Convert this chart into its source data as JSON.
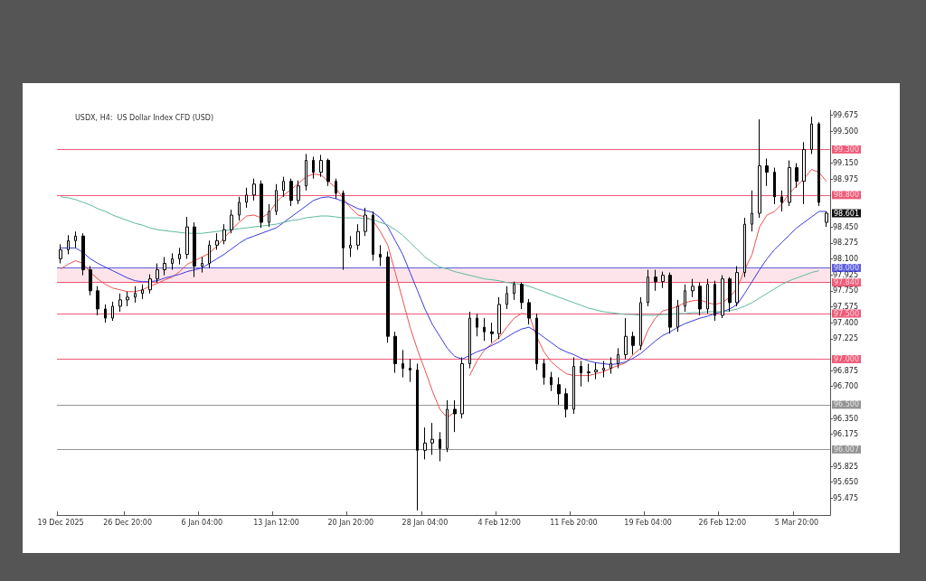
{
  "chart_data": {
    "type": "candlestick",
    "title": "USDX, H4:  US Dollar Index CFD (USD)",
    "color": "#000000",
    "grid": false,
    "categories": [
      "19 Dec 2025",
      null,
      null,
      null,
      null,
      null,
      null,
      null,
      null,
      "26 Dec 20:00",
      null,
      null,
      null,
      null,
      null,
      null,
      null,
      null,
      null,
      "6 Jan 04:00",
      null,
      null,
      null,
      null,
      null,
      null,
      null,
      null,
      null,
      "13 Jan 12:00",
      null,
      null,
      null,
      null,
      null,
      null,
      null,
      null,
      null,
      "20 Jan 20:00",
      null,
      null,
      null,
      null,
      null,
      null,
      null,
      null,
      null,
      "28 Jan 04:00",
      null,
      null,
      null,
      null,
      null,
      null,
      null,
      null,
      null,
      "4 Feb 12:00",
      null,
      null,
      null,
      null,
      null,
      null,
      null,
      null,
      null,
      "11 Feb 20:00",
      null,
      null,
      null,
      null,
      null,
      null,
      null,
      null,
      null,
      "19 Feb 04:00",
      null,
      null,
      null,
      null,
      null,
      null,
      null,
      null,
      null,
      "26 Feb 12:00",
      null,
      null,
      null,
      null,
      null,
      null,
      null,
      null,
      null,
      "5 Mar 20:00",
      null,
      null,
      null,
      null
    ],
    "ohlc": [
      [
        98.1,
        98.26,
        98.05,
        98.2
      ],
      [
        98.2,
        98.36,
        98.15,
        98.3
      ],
      [
        98.3,
        98.4,
        98.22,
        98.35
      ],
      [
        98.35,
        98.38,
        97.92,
        97.98
      ],
      [
        97.98,
        98.02,
        97.7,
        97.75
      ],
      [
        97.75,
        97.8,
        97.48,
        97.55
      ],
      [
        97.55,
        97.6,
        97.4,
        97.45
      ],
      [
        97.45,
        97.63,
        97.42,
        97.58
      ],
      [
        97.58,
        97.72,
        97.52,
        97.65
      ],
      [
        97.65,
        97.74,
        97.58,
        97.68
      ],
      [
        97.68,
        97.8,
        97.62,
        97.72
      ],
      [
        97.72,
        97.82,
        97.66,
        97.76
      ],
      [
        97.76,
        97.93,
        97.72,
        97.88
      ],
      [
        97.88,
        98.05,
        97.84,
        97.98
      ],
      [
        97.98,
        98.12,
        97.92,
        98.05
      ],
      [
        98.05,
        98.16,
        97.98,
        98.1
      ],
      [
        98.1,
        98.22,
        98.04,
        98.15
      ],
      [
        98.15,
        98.56,
        98.1,
        98.45
      ],
      [
        98.45,
        98.5,
        97.9,
        98.02
      ],
      [
        98.02,
        98.12,
        97.95,
        98.05
      ],
      [
        98.05,
        98.3,
        98.0,
        98.25
      ],
      [
        98.25,
        98.38,
        98.2,
        98.3
      ],
      [
        98.3,
        98.48,
        98.26,
        98.42
      ],
      [
        98.42,
        98.64,
        98.38,
        98.58
      ],
      [
        98.58,
        98.78,
        98.52,
        98.72
      ],
      [
        98.72,
        98.88,
        98.66,
        98.8
      ],
      [
        98.8,
        98.98,
        98.74,
        98.92
      ],
      [
        98.92,
        98.96,
        98.44,
        98.5
      ],
      [
        98.5,
        98.7,
        98.45,
        98.62
      ],
      [
        98.62,
        98.92,
        98.58,
        98.85
      ],
      [
        98.85,
        99.0,
        98.78,
        98.95
      ],
      [
        98.95,
        98.98,
        98.68,
        98.74
      ],
      [
        98.74,
        98.96,
        98.7,
        98.9
      ],
      [
        98.9,
        99.25,
        98.85,
        99.18
      ],
      [
        99.18,
        99.22,
        98.98,
        99.05
      ],
      [
        99.05,
        99.24,
        99.0,
        99.18
      ],
      [
        99.18,
        99.2,
        98.9,
        98.95
      ],
      [
        98.95,
        98.98,
        98.76,
        98.82
      ],
      [
        98.82,
        98.85,
        97.98,
        98.22
      ],
      [
        98.22,
        98.35,
        98.12,
        98.25
      ],
      [
        98.25,
        98.48,
        98.2,
        98.4
      ],
      [
        98.4,
        98.66,
        98.35,
        98.58
      ],
      [
        98.58,
        98.62,
        98.08,
        98.15
      ],
      [
        98.15,
        98.25,
        98.02,
        98.12
      ],
      [
        98.12,
        98.18,
        97.18,
        97.25
      ],
      [
        97.25,
        97.3,
        96.85,
        96.95
      ],
      [
        96.95,
        97.1,
        96.8,
        96.9
      ],
      [
        96.9,
        97.0,
        96.75,
        96.88
      ],
      [
        96.88,
        96.95,
        95.34,
        96.0
      ],
      [
        96.0,
        96.25,
        95.9,
        96.08
      ],
      [
        96.08,
        96.3,
        95.95,
        96.12
      ],
      [
        96.12,
        96.2,
        95.88,
        96.02
      ],
      [
        96.02,
        96.55,
        95.98,
        96.45
      ],
      [
        96.45,
        96.55,
        96.2,
        96.4
      ],
      [
        96.4,
        97.02,
        96.35,
        96.95
      ],
      [
        96.95,
        97.52,
        96.9,
        97.45
      ],
      [
        97.45,
        97.5,
        97.25,
        97.35
      ],
      [
        97.35,
        97.45,
        97.2,
        97.3
      ],
      [
        97.3,
        97.4,
        97.18,
        97.28
      ],
      [
        97.28,
        97.68,
        97.22,
        97.6
      ],
      [
        97.6,
        97.8,
        97.55,
        97.72
      ],
      [
        97.72,
        97.85,
        97.65,
        97.82
      ],
      [
        97.82,
        97.84,
        97.55,
        97.62
      ],
      [
        97.62,
        97.66,
        97.38,
        97.45
      ],
      [
        97.45,
        97.5,
        96.88,
        96.95
      ],
      [
        96.95,
        97.0,
        96.72,
        96.8
      ],
      [
        96.8,
        96.86,
        96.65,
        96.72
      ],
      [
        96.72,
        96.8,
        96.5,
        96.62
      ],
      [
        96.62,
        96.68,
        96.36,
        96.45
      ],
      [
        96.45,
        97.02,
        96.4,
        96.92
      ],
      [
        96.92,
        96.98,
        96.7,
        96.85
      ],
      [
        96.85,
        96.95,
        96.75,
        96.86
      ],
      [
        96.86,
        96.96,
        96.78,
        96.88
      ],
      [
        96.88,
        96.98,
        96.8,
        96.9
      ],
      [
        96.9,
        97.02,
        96.84,
        96.95
      ],
      [
        96.95,
        97.12,
        96.9,
        97.05
      ],
      [
        97.05,
        97.45,
        97.0,
        97.25
      ],
      [
        97.25,
        97.3,
        97.05,
        97.15
      ],
      [
        97.15,
        97.68,
        97.1,
        97.62
      ],
      [
        97.62,
        97.98,
        97.58,
        97.9
      ],
      [
        97.9,
        97.98,
        97.75,
        97.85
      ],
      [
        97.85,
        97.96,
        97.78,
        97.92
      ],
      [
        97.92,
        97.95,
        97.28,
        97.35
      ],
      [
        97.35,
        97.65,
        97.3,
        97.58
      ],
      [
        97.58,
        97.82,
        97.52,
        97.75
      ],
      [
        97.75,
        97.88,
        97.68,
        97.8
      ],
      [
        97.8,
        97.84,
        97.48,
        97.55
      ],
      [
        97.55,
        97.88,
        97.5,
        97.82
      ],
      [
        97.82,
        97.86,
        97.42,
        97.48
      ],
      [
        97.48,
        97.92,
        97.45,
        97.88
      ],
      [
        97.88,
        97.9,
        97.52,
        97.62
      ],
      [
        97.62,
        98.02,
        97.58,
        97.95
      ],
      [
        97.95,
        98.55,
        97.9,
        98.48
      ],
      [
        98.48,
        98.85,
        98.4,
        98.6
      ],
      [
        98.6,
        99.63,
        98.55,
        99.12
      ],
      [
        99.12,
        99.2,
        98.9,
        99.05
      ],
      [
        99.05,
        99.1,
        98.7,
        98.78
      ],
      [
        98.78,
        98.85,
        98.62,
        98.72
      ],
      [
        98.72,
        99.18,
        98.68,
        99.1
      ],
      [
        99.1,
        99.15,
        98.88,
        98.95
      ],
      [
        98.95,
        99.38,
        98.7,
        99.3
      ],
      [
        99.3,
        99.66,
        99.25,
        99.58
      ],
      [
        99.58,
        99.6,
        98.68,
        98.72
      ],
      [
        98.5,
        98.62,
        98.45,
        98.601
      ]
    ],
    "series": [
      {
        "type": "line",
        "color": "#f05050",
        "values": [
          97.99,
          98.04,
          98.08,
          98.05,
          97.95,
          97.88,
          97.82,
          97.78,
          97.76,
          97.74,
          97.74,
          97.76,
          97.8,
          97.83,
          97.87,
          97.9,
          97.96,
          98.04,
          98.08,
          98.12,
          98.16,
          98.24,
          98.33,
          98.42,
          98.5,
          98.57,
          98.58,
          98.55,
          98.6,
          98.72,
          98.8,
          98.86,
          98.93,
          99.0,
          99.03,
          99.02,
          98.95,
          98.88,
          98.76,
          98.66,
          98.58,
          98.56,
          98.52,
          98.4,
          98.25,
          97.95,
          97.65,
          97.35,
          97.1,
          96.88,
          96.65,
          96.45,
          96.36,
          96.42,
          null,
          96.82,
          96.98,
          97.1,
          97.17,
          97.24,
          97.35,
          97.45,
          97.5,
          97.49,
          97.25,
          97.08,
          96.97,
          96.9,
          96.84,
          96.82,
          96.82,
          96.82,
          96.84,
          96.86,
          96.9,
          96.93,
          96.96,
          97.05,
          97.12,
          97.32,
          97.45,
          97.53,
          97.55,
          97.58,
          97.62,
          97.64,
          97.65,
          97.62,
          97.6,
          97.62,
          97.68,
          97.78,
          97.98,
          98.15,
          98.45,
          98.58,
          98.62,
          98.7,
          98.82,
          98.9,
          98.98,
          99.08,
          99.05,
          98.95
        ]
      },
      {
        "type": "line",
        "color": "#3a3adf",
        "values": [
          98.22,
          98.22,
          98.22,
          98.17,
          98.1,
          98.05,
          98.01,
          97.97,
          97.93,
          97.89,
          97.86,
          97.85,
          97.85,
          97.86,
          97.89,
          97.91,
          97.93,
          97.96,
          97.98,
          98.0,
          98.05,
          98.1,
          98.15,
          98.21,
          98.27,
          98.32,
          98.35,
          98.38,
          98.41,
          98.44,
          98.5,
          98.56,
          98.62,
          98.68,
          98.74,
          98.77,
          98.78,
          98.76,
          98.73,
          98.69,
          98.65,
          98.63,
          98.61,
          98.55,
          98.45,
          98.3,
          98.15,
          97.95,
          97.75,
          97.55,
          97.38,
          97.25,
          97.12,
          97.03,
          97.0,
          97.04,
          97.08,
          97.11,
          97.15,
          97.19,
          97.24,
          97.29,
          97.33,
          97.35,
          97.3,
          97.24,
          97.18,
          97.12,
          97.08,
          97.05,
          97.01,
          96.98,
          96.96,
          96.95,
          96.94,
          96.95,
          96.97,
          97.01,
          97.06,
          97.13,
          97.2,
          97.26,
          97.3,
          97.35,
          97.39,
          97.42,
          97.45,
          97.47,
          97.5,
          97.52,
          97.55,
          97.6,
          97.72,
          97.85,
          97.98,
          98.1,
          98.2,
          98.28,
          98.36,
          98.44,
          98.5,
          98.56,
          98.62,
          98.62
        ]
      },
      {
        "type": "line",
        "color": "#5fb8a0",
        "values": [
          98.78,
          98.77,
          98.75,
          98.72,
          98.69,
          98.65,
          98.62,
          98.58,
          98.55,
          98.52,
          98.49,
          98.47,
          98.44,
          98.42,
          98.41,
          98.4,
          98.39,
          98.38,
          98.38,
          98.38,
          98.39,
          98.4,
          98.41,
          98.42,
          98.43,
          98.44,
          98.45,
          98.46,
          98.47,
          98.48,
          98.5,
          98.52,
          98.53,
          98.55,
          98.56,
          98.57,
          98.57,
          98.56,
          98.55,
          98.55,
          98.55,
          98.54,
          98.53,
          98.5,
          98.47,
          98.42,
          98.36,
          98.28,
          98.2,
          98.12,
          98.06,
          98.01,
          97.99,
          97.96,
          97.94,
          97.92,
          97.9,
          97.88,
          97.87,
          97.86,
          97.84,
          97.83,
          97.82,
          97.8,
          97.77,
          97.74,
          97.71,
          97.68,
          97.65,
          97.62,
          97.59,
          97.56,
          97.54,
          97.52,
          97.51,
          97.5,
          97.49,
          97.49,
          97.48,
          97.48,
          97.48,
          97.49,
          97.49,
          97.5,
          97.5,
          97.51,
          97.51,
          97.52,
          97.52,
          97.52,
          97.53,
          97.55,
          97.58,
          97.62,
          97.67,
          97.72,
          97.77,
          97.82,
          97.86,
          97.89,
          97.92,
          97.95,
          97.97,
          null
        ]
      }
    ],
    "ylim": [
      95.29,
      99.73
    ],
    "yticks": [
      {
        "value": 99.675,
        "label": "99.675"
      },
      {
        "value": 99.5,
        "label": "99.500"
      },
      {
        "value": 99.15,
        "label": "99.150"
      },
      {
        "value": 98.975,
        "label": "98.975"
      },
      {
        "value": 98.45,
        "label": "98.450"
      },
      {
        "value": 98.275,
        "label": "98.275"
      },
      {
        "value": 98.1,
        "label": "98.100"
      },
      {
        "value": 97.925,
        "label": "97.925"
      },
      {
        "value": 97.75,
        "label": "97.750"
      },
      {
        "value": 97.575,
        "label": "97.575"
      },
      {
        "value": 97.4,
        "label": "97.400"
      },
      {
        "value": 97.225,
        "label": "97.225"
      },
      {
        "value": 96.875,
        "label": "96.875"
      },
      {
        "value": 96.7,
        "label": "96.700"
      },
      {
        "value": 96.35,
        "label": "96.350"
      },
      {
        "value": 96.175,
        "label": "96.175"
      },
      {
        "value": 95.825,
        "label": "95.825"
      },
      {
        "value": 95.65,
        "label": "95.650"
      },
      {
        "value": 95.475,
        "label": "95.475"
      }
    ],
    "ref_lines": [
      {
        "axis": "y",
        "value": 99.3,
        "label": "99.300",
        "color": "#e8244c"
      },
      {
        "axis": "y",
        "value": 98.8,
        "label": "98.800",
        "color": "#e8244c"
      },
      {
        "axis": "y",
        "value": 98.0,
        "label": "98.000",
        "color": "#2a2ad0"
      },
      {
        "axis": "y",
        "value": 97.84,
        "label": "97.840",
        "color": "#e8244c"
      },
      {
        "axis": "y",
        "value": 97.5,
        "label": "97.500",
        "color": "#e8244c"
      },
      {
        "axis": "y",
        "value": 97.0,
        "label": "97.000",
        "color": "#e8244c"
      },
      {
        "axis": "y",
        "value": 96.5,
        "label": "96.500",
        "color": "#707070"
      },
      {
        "axis": "y",
        "value": 96.007,
        "label": "96.007",
        "color": "#707070"
      }
    ],
    "annotations": [
      "98.601"
    ],
    "bands": [
      {
        "axis": "y",
        "from": 97.84,
        "to": 98.0,
        "color": "#fde4ea"
      }
    ]
  }
}
